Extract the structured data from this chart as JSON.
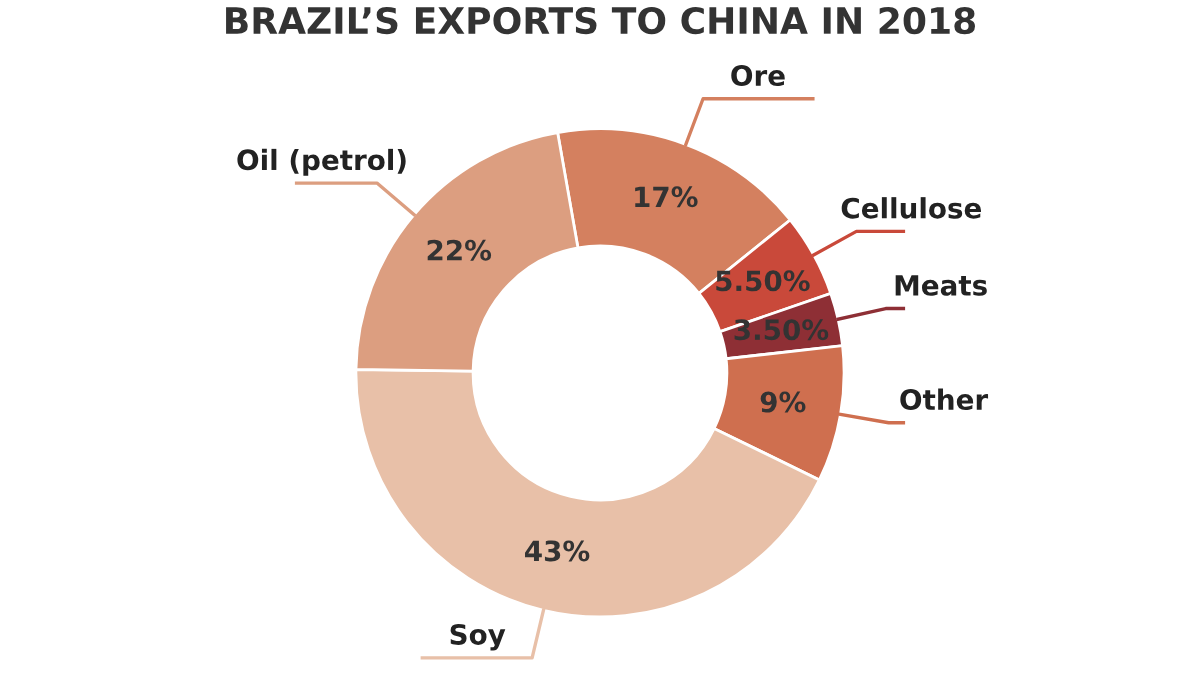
{
  "chart_data": {
    "type": "donut",
    "title": "BRAZIL’S EXPORTS TO CHINA IN 2018",
    "categories": [
      "Ore",
      "Cellulose",
      "Meats",
      "Other",
      "Soy",
      "Oil (petrol)"
    ],
    "values": [
      17,
      5.5,
      3.5,
      9,
      43,
      22
    ],
    "value_labels": [
      "17%",
      "5.50%",
      "3.50%",
      "9%",
      "43%",
      "22%"
    ],
    "colors": [
      "#d4805f",
      "#c9493a",
      "#8e2f35",
      "#cf6f4f",
      "#e8c0a8",
      "#dc9e80"
    ]
  }
}
